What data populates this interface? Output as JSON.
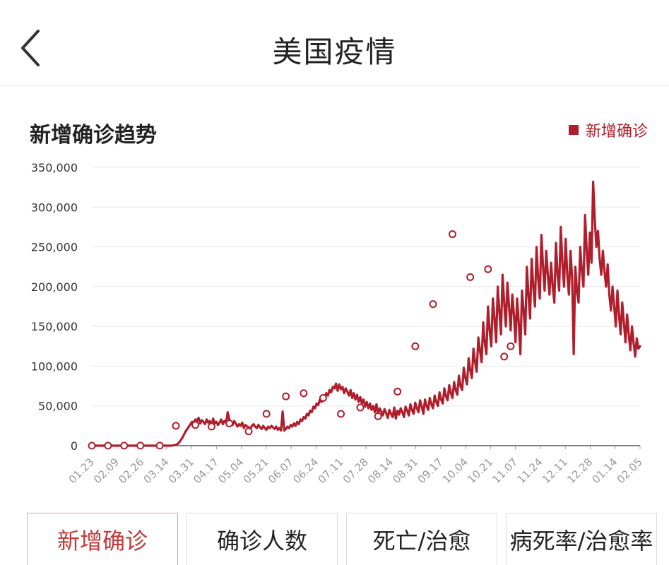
{
  "header": {
    "title": "美国疫情",
    "back_icon": "chevron-left-icon"
  },
  "chart_data": {
    "type": "line",
    "title": "新增确诊趋势",
    "legend": "新增确诊",
    "legend_position": "top-right",
    "color": "#b01e2c",
    "grid": true,
    "ylim": [
      0,
      350000
    ],
    "y_ticks": [
      "350,000",
      "300,000",
      "250,000",
      "200,000",
      "150,000",
      "100,000",
      "50,000",
      "0"
    ],
    "x_tick_labels": [
      "01.23",
      "02.09",
      "02.26",
      "03.14",
      "03.31",
      "04.17",
      "05.04",
      "05.21",
      "06.07",
      "06.24",
      "07.11",
      "07.28",
      "08.14",
      "08.31",
      "09.17",
      "10.04",
      "10.21",
      "11.07",
      "11.24",
      "12.11",
      "12.28",
      "01.14",
      "02.05"
    ],
    "series": [
      {
        "name": "新增确诊",
        "values": [
          0,
          0,
          0,
          0,
          0,
          0,
          0,
          0,
          0,
          0,
          0,
          0,
          0,
          0,
          0,
          0,
          0,
          0,
          0,
          0,
          0,
          0,
          0,
          0,
          0,
          0,
          0,
          0,
          0,
          0,
          0,
          0,
          0,
          0,
          0,
          0,
          0,
          0,
          0,
          0,
          0,
          0,
          0,
          0,
          0,
          0,
          0,
          0,
          0,
          0,
          200,
          500,
          1000,
          2000,
          4000,
          7000,
          10000,
          14000,
          18000,
          21000,
          24000,
          27000,
          30000,
          29000,
          33000,
          31000,
          35000,
          28000,
          32000,
          30000,
          27000,
          33000,
          29000,
          31000,
          25000,
          34000,
          28000,
          30000,
          26000,
          29000,
          33000,
          27000,
          31000,
          29000,
          42000,
          33000,
          30000,
          26000,
          31000,
          28000,
          24000,
          27000,
          25000,
          29000,
          22000,
          26000,
          24000,
          23000,
          21000,
          25000,
          27000,
          24000,
          22000,
          26000,
          23000,
          21000,
          25000,
          22000,
          20000,
          24000,
          22000,
          25000,
          23000,
          21000,
          24000,
          20000,
          22000,
          19000,
          43000,
          19000,
          21000,
          24000,
          22000,
          26000,
          24000,
          28000,
          25000,
          30000,
          27000,
          33000,
          31000,
          36000,
          34000,
          40000,
          38000,
          44000,
          42000,
          49000,
          47000,
          53000,
          51000,
          58000,
          55000,
          63000,
          60000,
          66000,
          63000,
          70000,
          67000,
          74000,
          72000,
          78000,
          69000,
          77000,
          71000,
          74000,
          66000,
          72000,
          68000,
          63000,
          70000,
          60000,
          66000,
          58000,
          64000,
          55000,
          61000,
          53000,
          58000,
          49000,
          55000,
          47000,
          53000,
          45000,
          50000,
          42000,
          52000,
          40000,
          47000,
          43000,
          38000,
          46000,
          41000,
          35000,
          45000,
          40000,
          36000,
          48000,
          34000,
          44000,
          39000,
          47000,
          42000,
          36000,
          49000,
          44000,
          38000,
          52000,
          45000,
          40000,
          54000,
          47000,
          42000,
          57000,
          49000,
          40000,
          58000,
          50000,
          45000,
          60000,
          52000,
          47000,
          63000,
          55000,
          50000,
          67000,
          58000,
          53000,
          72000,
          62000,
          57000,
          76000,
          66000,
          60000,
          80000,
          70000,
          64000,
          88000,
          75000,
          70000,
          98000,
          85000,
          77000,
          110000,
          95000,
          85000,
          122000,
          105000,
          93000,
          136000,
          120000,
          105000,
          155000,
          130000,
          115000,
          175000,
          145000,
          125000,
          185000,
          160000,
          130000,
          200000,
          170000,
          140000,
          215000,
          180000,
          150000,
          205000,
          175000,
          145000,
          190000,
          165000,
          130000,
          185000,
          155000,
          115000,
          195000,
          170000,
          140000,
          225000,
          190000,
          160000,
          235000,
          200000,
          175000,
          250000,
          210000,
          185000,
          265000,
          225000,
          195000,
          245000,
          215000,
          190000,
          230000,
          200000,
          180000,
          255000,
          215000,
          195000,
          275000,
          230000,
          200000,
          260000,
          215000,
          190000,
          245000,
          210000,
          115000,
          225000,
          195000,
          180000,
          250000,
          220000,
          200000,
          290000,
          245000,
          215000,
          268000,
          230000,
          332000,
          285000,
          250000,
          270000,
          235000,
          215000,
          245000,
          220000,
          200000,
          228000,
          190000,
          170000,
          200000,
          175000,
          150000,
          195000,
          165000,
          140000,
          180000,
          155000,
          130000,
          165000,
          140000,
          120000,
          150000,
          130000,
          112000,
          135000,
          122000,
          125000
        ],
        "markers": [
          [
            0,
            0
          ],
          [
            10,
            0
          ],
          [
            20,
            0
          ],
          [
            30,
            0
          ],
          [
            42,
            0
          ],
          [
            52,
            25000
          ],
          [
            64,
            26000
          ],
          [
            74,
            24000
          ],
          [
            85,
            28000
          ],
          [
            97,
            18000
          ],
          [
            108,
            40000
          ],
          [
            120,
            62000
          ],
          [
            131,
            66000
          ],
          [
            143,
            60000
          ],
          [
            154,
            40000
          ],
          [
            166,
            48000
          ],
          [
            177,
            37000
          ],
          [
            189,
            68000
          ],
          [
            200,
            125000
          ],
          [
            211,
            178000
          ],
          [
            223,
            266000
          ],
          [
            234,
            212000
          ],
          [
            245,
            222000
          ],
          [
            255,
            112000
          ],
          [
            259,
            125000
          ]
        ]
      }
    ]
  },
  "tabs": [
    {
      "label": "新增确诊",
      "active": true
    },
    {
      "label": "确诊人数",
      "active": false
    },
    {
      "label": "死亡/治愈",
      "active": false
    },
    {
      "label": "病死率/治愈率",
      "active": false
    }
  ]
}
